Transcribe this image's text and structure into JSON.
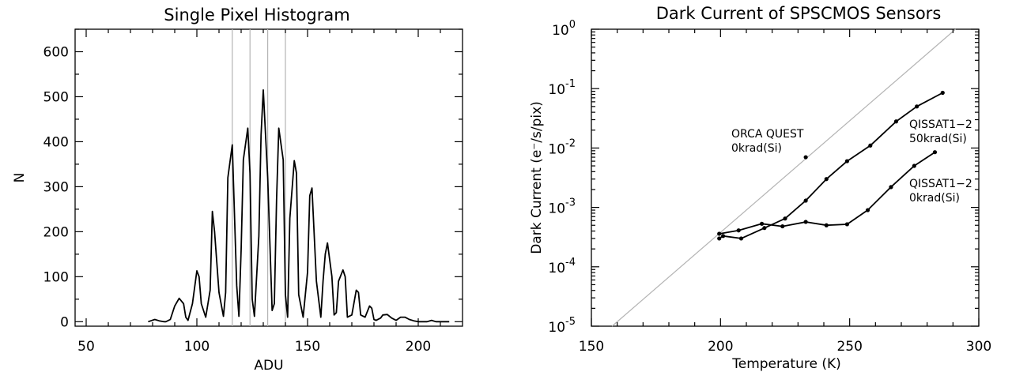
{
  "chart_data": [
    {
      "type": "line",
      "title": "Single Pixel Histogram",
      "xlabel": "ADU",
      "ylabel": "N",
      "xlim": [
        45,
        220
      ],
      "ylim": [
        -10,
        650
      ],
      "xticks": [
        50,
        100,
        150,
        200
      ],
      "yticks": [
        0,
        100,
        200,
        300,
        400,
        500,
        600
      ],
      "xtick_labels": [
        "50",
        "100",
        "150",
        "200"
      ],
      "ytick_labels": [
        "0",
        "100",
        "200",
        "300",
        "400",
        "500",
        "600"
      ],
      "reference_lines_x": [
        116,
        124,
        132,
        140
      ],
      "grid": false,
      "series": [
        {
          "x": [
            78,
            81,
            83,
            85,
            86,
            88,
            90,
            92,
            94,
            95,
            96,
            98,
            100,
            101,
            102,
            104,
            106,
            107,
            108,
            110,
            112,
            113,
            114,
            116,
            118,
            119,
            120,
            121,
            123,
            124,
            125,
            126,
            128,
            129,
            130,
            132,
            134,
            135,
            136,
            137,
            139,
            140,
            141,
            142,
            144,
            145,
            146,
            148,
            150,
            151,
            152,
            154,
            156,
            157,
            158,
            159,
            161,
            162,
            163,
            164,
            166,
            167,
            168,
            170,
            172,
            173,
            174,
            176,
            178,
            179,
            180,
            181,
            183,
            184,
            186,
            188,
            190,
            192,
            194,
            196,
            198,
            200,
            202,
            204,
            206,
            208,
            210,
            212,
            214
          ],
          "y": [
            0,
            5,
            2,
            0,
            0,
            5,
            35,
            52,
            40,
            10,
            3,
            40,
            113,
            100,
            40,
            10,
            70,
            245,
            200,
            65,
            12,
            65,
            320,
            393,
            80,
            12,
            160,
            360,
            430,
            330,
            50,
            12,
            190,
            415,
            515,
            320,
            25,
            40,
            270,
            430,
            360,
            60,
            10,
            230,
            358,
            330,
            60,
            10,
            110,
            280,
            297,
            90,
            10,
            90,
            150,
            175,
            100,
            15,
            20,
            90,
            115,
            100,
            10,
            15,
            70,
            65,
            15,
            10,
            35,
            30,
            5,
            3,
            8,
            15,
            16,
            8,
            3,
            10,
            10,
            5,
            2,
            0,
            0,
            0,
            3,
            0,
            0,
            0,
            0
          ]
        }
      ]
    },
    {
      "type": "line",
      "title": "Dark Current of SPSCMOS Sensors",
      "xlabel": "Temperature (K)",
      "ylabel": "Dark Current (e⁻/s/pix)",
      "y_scale": "log",
      "xlim": [
        150,
        300
      ],
      "ylim": [
        1e-05,
        1
      ],
      "xticks": [
        150,
        200,
        250,
        300
      ],
      "xtick_labels": [
        "150",
        "200",
        "250",
        "300"
      ],
      "yticks": [
        1e-05,
        0.0001,
        0.001,
        0.01,
        0.1,
        1
      ],
      "ytick_labels": [
        {
          "base": "10",
          "exp": "-5"
        },
        {
          "base": "10",
          "exp": "-4"
        },
        {
          "base": "10",
          "exp": "-3"
        },
        {
          "base": "10",
          "exp": "-2"
        },
        {
          "base": "10",
          "exp": "-1"
        },
        {
          "base": "10",
          "exp": "0"
        }
      ],
      "grid": false,
      "reference_line": {
        "x": [
          158,
          291
        ],
        "y": [
          1e-05,
          1
        ]
      },
      "series": [
        {
          "label_lines": [
            "QISSAT1−2",
            "50krad(Si)"
          ],
          "x": [
            199.5,
            201,
            208,
            217,
            225,
            233,
            241,
            249,
            258,
            268,
            276,
            286
          ],
          "y": [
            0.0003,
            0.00033,
            0.0003,
            0.00045,
            0.00065,
            0.0013,
            0.003,
            0.006,
            0.011,
            0.028,
            0.05,
            0.085
          ]
        },
        {
          "label_lines": [
            "QISSAT1−2",
            "0krad(Si)"
          ],
          "x": [
            199.5,
            207,
            216,
            224,
            233,
            241,
            249,
            257,
            266,
            275,
            283
          ],
          "y": [
            0.00036,
            0.00041,
            0.00053,
            0.00048,
            0.00057,
            0.0005,
            0.00052,
            0.0009,
            0.0022,
            0.005,
            0.0085
          ]
        },
        {
          "label_lines": [
            "ORCA QUEST",
            "0krad(Si)"
          ],
          "x": [
            233
          ],
          "y": [
            0.007
          ]
        }
      ]
    }
  ]
}
